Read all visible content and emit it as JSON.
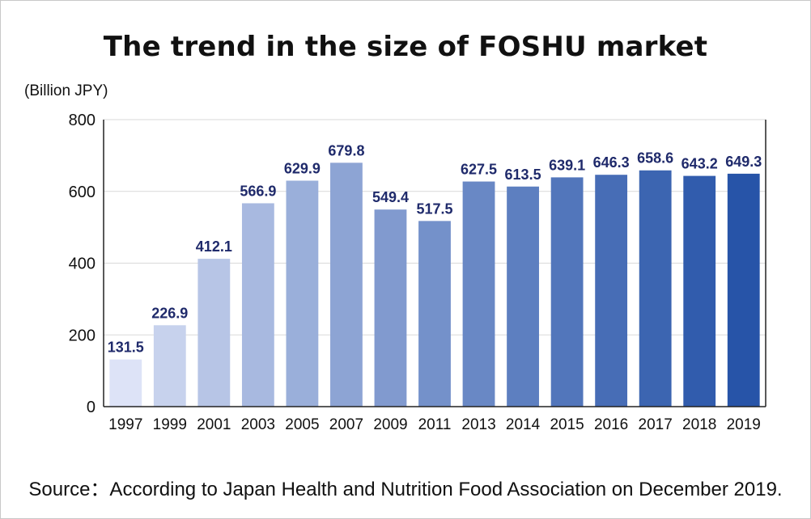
{
  "chart_data": {
    "type": "bar",
    "title": "The trend in the size of FOSHU market",
    "unit_label": "(Billion JPY)",
    "source": "Source：According to Japan Health and Nutrition Food Association on December 2019.",
    "categories": [
      "1997",
      "1999",
      "2001",
      "2003",
      "2005",
      "2007",
      "2009",
      "2011",
      "2013",
      "2014",
      "2015",
      "2016",
      "2017",
      "2018",
      "2019"
    ],
    "values": [
      131.5,
      226.9,
      412.1,
      566.9,
      629.9,
      679.8,
      549.4,
      517.5,
      627.5,
      613.5,
      639.1,
      646.3,
      658.6,
      643.2,
      649.3
    ],
    "value_labels": [
      "131.5",
      "226.9",
      "412.1",
      "566.9",
      "629.9",
      "679.8",
      "549.4",
      "517.5",
      "627.5",
      "613.5",
      "639.1",
      "646.3",
      "658.6",
      "643.2",
      "649.3"
    ],
    "yticks": [
      "0",
      "200",
      "400",
      "600",
      "800"
    ],
    "ylim": [
      0,
      800
    ],
    "grid": true,
    "bar_color_start": "#dde3f7",
    "bar_color_end": "#2754a8",
    "label_color": "#1f2a6b"
  }
}
